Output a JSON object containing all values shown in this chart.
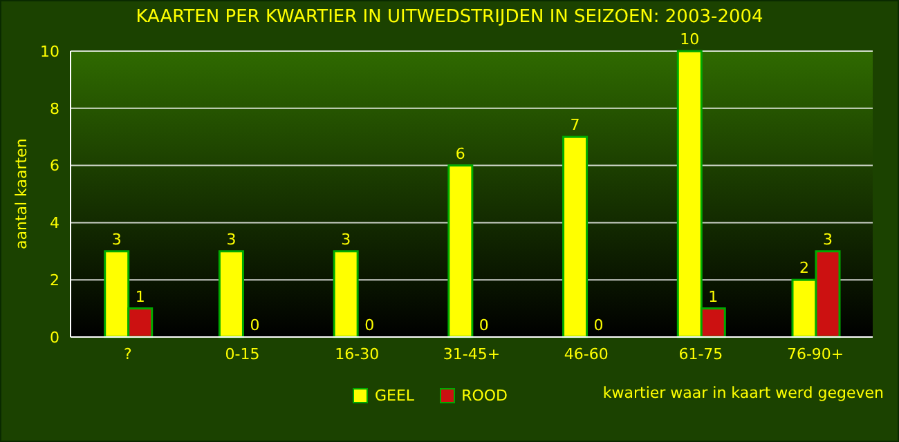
{
  "chart_data": {
    "type": "bar",
    "title": "KAARTEN PER KWARTIER IN UITWEDSTRIJDEN IN SEIZOEN: 2003-2004",
    "xlabel": "kwartier waar in kaart werd gegeven",
    "ylabel": "aantal kaarten",
    "categories": [
      "?",
      "0-15",
      "16-30",
      "31-45+",
      "46-60",
      "61-75",
      "76-90+"
    ],
    "series": [
      {
        "name": "GEEL",
        "color": "#ffff00",
        "values": [
          3,
          3,
          3,
          6,
          7,
          10,
          2
        ]
      },
      {
        "name": "ROOD",
        "color": "#cc1111",
        "values": [
          1,
          0,
          0,
          0,
          0,
          1,
          3
        ]
      }
    ],
    "ylim": [
      0,
      10
    ],
    "yticks": [
      0,
      2,
      4,
      6,
      8,
      10
    ],
    "grid": "y",
    "legend": "bottom",
    "data_labels": true
  }
}
